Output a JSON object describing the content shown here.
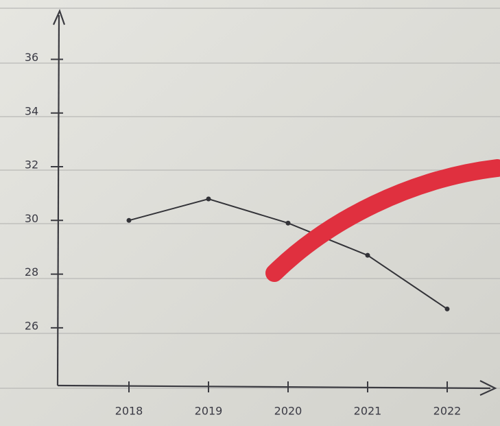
{
  "chart_data": {
    "type": "line",
    "categories": [
      "2018",
      "2019",
      "2020",
      "2021",
      "2022"
    ],
    "values": [
      30,
      30.8,
      29.9,
      28.7,
      26.7
    ],
    "color": "#333338",
    "ylim": [
      23.9,
      37.7
    ],
    "yticks": [
      26,
      28,
      30,
      32,
      34,
      36
    ]
  }
}
